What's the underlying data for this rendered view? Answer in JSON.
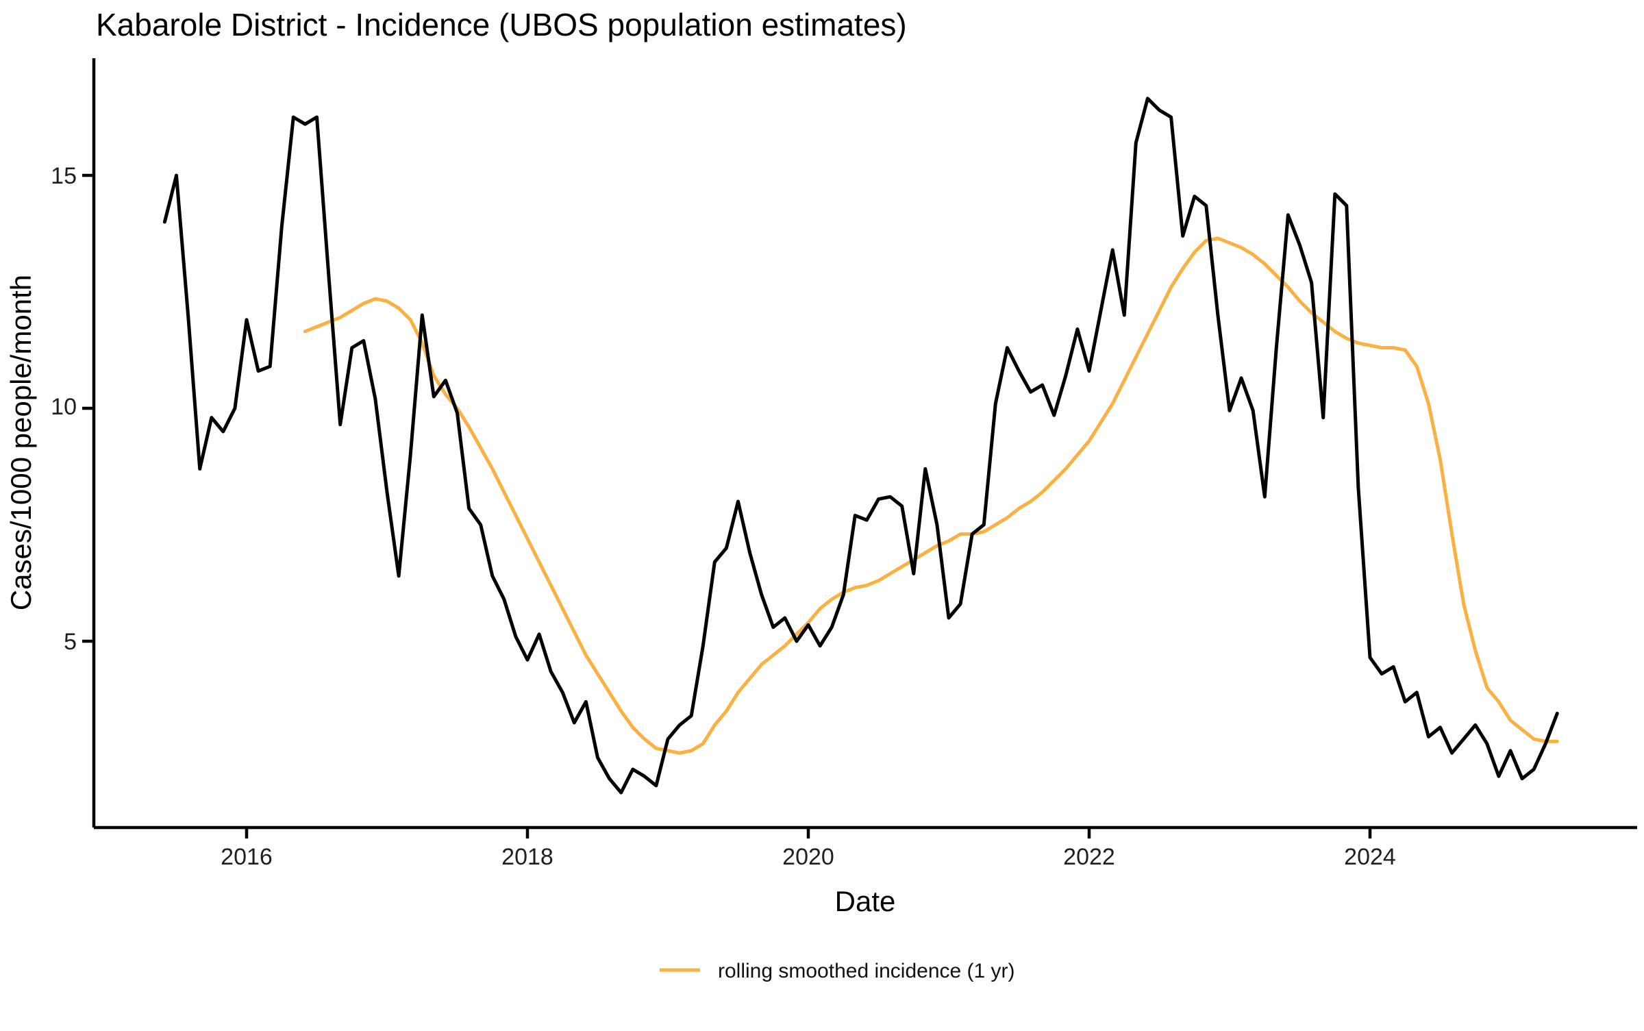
{
  "title": "Kabarole District - Incidence (UBOS population estimates)",
  "axes": {
    "x_label": "Date",
    "y_label": "Cases/1000 people/month",
    "x_tick_labels": [
      "2016",
      "2018",
      "2020",
      "2022",
      "2024"
    ],
    "y_tick_labels": [
      "5",
      "10",
      "15"
    ]
  },
  "legend": {
    "items": [
      {
        "label": "rolling smoothed incidence (1 yr)",
        "color": "#FBB042"
      }
    ]
  },
  "colors": {
    "raw_series": "#000000",
    "smoothed_series": "#FBB042",
    "axis": "#000000",
    "text": "#1f1f1f"
  },
  "chart_data": {
    "type": "line",
    "title": "Kabarole District - Incidence (UBOS population estimates)",
    "xlabel": "Date",
    "ylabel": "Cases/1000 people/month",
    "grid": false,
    "legend_position": "bottom-center",
    "x_axis": {
      "ticks": [
        2016,
        2018,
        2020,
        2022,
        2024
      ],
      "range": [
        2014.9,
        2025.9
      ]
    },
    "y_axis": {
      "ticks": [
        5,
        10,
        15
      ],
      "range": [
        1.0,
        17.4
      ]
    },
    "series": [
      {
        "name": "monthly incidence",
        "color": "#000000",
        "in_legend": false,
        "start_year": 2015,
        "start_month": 6,
        "step_months": 1,
        "values": [
          14.0,
          15.0,
          12.0,
          8.7,
          9.8,
          9.5,
          10.0,
          11.9,
          10.8,
          10.9,
          13.9,
          16.25,
          16.1,
          16.25,
          12.9,
          9.65,
          11.3,
          11.45,
          10.2,
          8.2,
          6.4,
          9.0,
          12.0,
          10.25,
          10.6,
          9.9,
          7.85,
          7.5,
          6.4,
          5.9,
          5.1,
          4.6,
          5.15,
          4.35,
          3.9,
          3.25,
          3.7,
          2.5,
          2.05,
          1.75,
          2.25,
          2.1,
          1.9,
          2.9,
          3.2,
          3.4,
          4.9,
          6.7,
          7.0,
          8.0,
          6.9,
          6.0,
          5.3,
          5.5,
          5.0,
          5.35,
          4.9,
          5.3,
          6.0,
          7.7,
          7.6,
          8.05,
          8.1,
          7.9,
          6.45,
          8.7,
          7.5,
          5.5,
          5.8,
          7.3,
          7.5,
          10.1,
          11.3,
          10.8,
          10.35,
          10.5,
          9.85,
          10.7,
          11.7,
          10.8,
          12.1,
          13.4,
          12.0,
          15.7,
          16.65,
          16.4,
          16.25,
          13.7,
          14.55,
          14.35,
          12.0,
          9.95,
          10.65,
          9.95,
          8.1,
          11.3,
          14.15,
          13.5,
          12.7,
          9.8,
          14.6,
          14.35,
          8.3,
          4.65,
          4.3,
          4.45,
          3.7,
          3.9,
          2.95,
          3.15,
          2.6,
          2.9,
          3.2,
          2.8,
          2.1,
          2.65,
          2.05,
          2.25,
          2.8,
          3.45
        ]
      },
      {
        "name": "rolling smoothed incidence (1 yr)",
        "color": "#FBB042",
        "in_legend": true,
        "start_year": 2016,
        "start_month": 6,
        "step_months": 1,
        "values": [
          11.65,
          11.75,
          11.85,
          11.95,
          12.1,
          12.25,
          12.35,
          12.3,
          12.15,
          11.9,
          11.4,
          10.7,
          10.3,
          10.0,
          9.6,
          9.15,
          8.7,
          8.2,
          7.7,
          7.2,
          6.7,
          6.2,
          5.7,
          5.2,
          4.7,
          4.3,
          3.9,
          3.5,
          3.15,
          2.9,
          2.7,
          2.65,
          2.6,
          2.65,
          2.8,
          3.2,
          3.5,
          3.9,
          4.2,
          4.5,
          4.7,
          4.9,
          5.15,
          5.4,
          5.7,
          5.9,
          6.05,
          6.15,
          6.2,
          6.3,
          6.45,
          6.6,
          6.75,
          6.9,
          7.05,
          7.15,
          7.3,
          7.3,
          7.35,
          7.5,
          7.65,
          7.85,
          8.0,
          8.2,
          8.45,
          8.7,
          9.0,
          9.3,
          9.7,
          10.1,
          10.6,
          11.1,
          11.6,
          12.1,
          12.6,
          13.0,
          13.35,
          13.6,
          13.65,
          13.55,
          13.45,
          13.3,
          13.1,
          12.85,
          12.6,
          12.3,
          12.05,
          11.85,
          11.65,
          11.5,
          11.4,
          11.35,
          11.3,
          11.3,
          11.25,
          10.9,
          10.1,
          8.9,
          7.3,
          5.8,
          4.8,
          4.0,
          3.7,
          3.3,
          3.1,
          2.9,
          2.85,
          2.85
        ]
      }
    ]
  }
}
